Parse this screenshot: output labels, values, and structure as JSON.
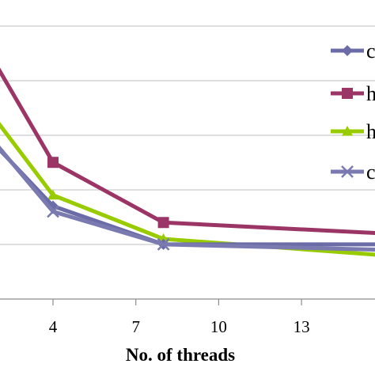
{
  "chart_data": {
    "type": "line",
    "xlabel": "No. of threads",
    "ylabel": "",
    "title": "",
    "x_ticks": [
      4,
      7,
      10,
      13
    ],
    "xlim": [
      1,
      16
    ],
    "ylim": [
      0,
      1
    ],
    "grid": true,
    "legend_placement": "right",
    "series": [
      {
        "name": "c",
        "marker": "diamond",
        "color": "#6b6ba8",
        "x": [
          1,
          4,
          8,
          16
        ],
        "y": [
          0.33,
          0.17,
          0.1,
          0.1
        ]
      },
      {
        "name": "h",
        "marker": "square",
        "color": "#9b3566",
        "x": [
          1,
          4,
          8,
          16
        ],
        "y": [
          0.51,
          0.25,
          0.14,
          0.12
        ]
      },
      {
        "name": "h",
        "marker": "triangle",
        "color": "#99cc00",
        "x": [
          1,
          4,
          8,
          16
        ],
        "y": [
          0.39,
          0.19,
          0.11,
          0.08
        ]
      },
      {
        "name": "c",
        "marker": "x",
        "color": "#7a7ab0",
        "x": [
          1,
          4,
          8,
          16
        ],
        "y": [
          0.34,
          0.16,
          0.1,
          0.09
        ]
      }
    ]
  }
}
